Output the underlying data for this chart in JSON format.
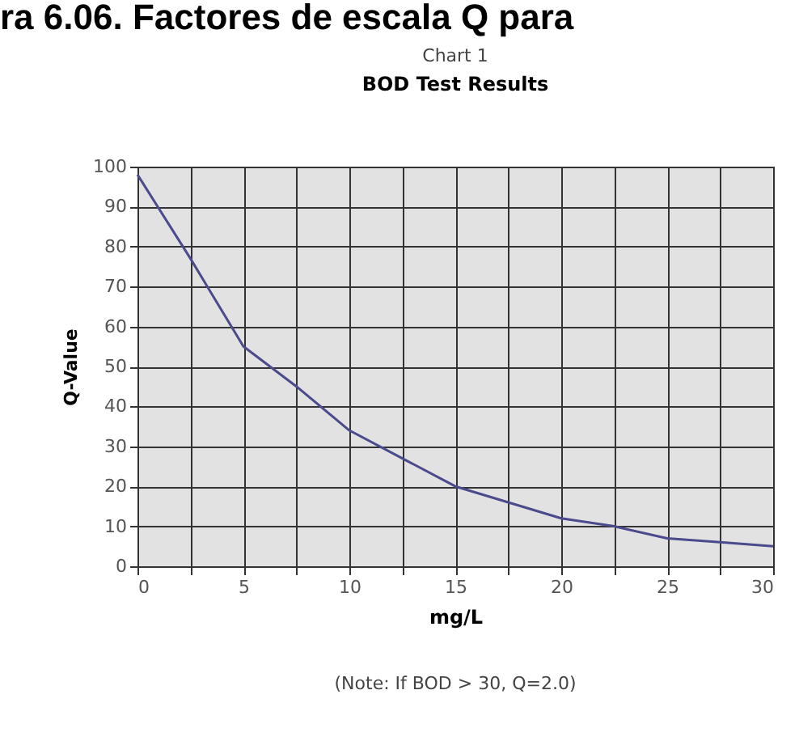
{
  "chart_data": {
    "type": "line",
    "title": "Chart 1",
    "subtitle": "BOD Test Results",
    "xlabel": "mg/L",
    "ylabel": "Q-Value",
    "annotations": [
      "ra 6.06. Factores de escala Q para",
      "(Note: If BOD > 30, Q=2.0)"
    ],
    "x": [
      0,
      2.5,
      5,
      7.5,
      10,
      12.5,
      15,
      17.5,
      20,
      22.5,
      25,
      27.5,
      30
    ],
    "series": [
      {
        "color": "#4a4a8c",
        "values": [
          98,
          77,
          55,
          45,
          34,
          27,
          20,
          16,
          12,
          10,
          7,
          6,
          5
        ]
      }
    ],
    "xlim": [
      0,
      30
    ],
    "ylim": [
      0,
      100
    ],
    "xticks": [
      0,
      {
        "value": 2.5,
        "label": null
      },
      5,
      {
        "value": 7.5,
        "label": null
      },
      10,
      {
        "value": 12.5,
        "label": null
      },
      15,
      {
        "value": 17.5,
        "label": null
      },
      20,
      {
        "value": 22.5,
        "label": null
      },
      25,
      {
        "value": 27.5,
        "label": null
      },
      30
    ],
    "yticks": [
      0,
      10,
      20,
      30,
      40,
      50,
      60,
      70,
      80,
      90,
      100
    ],
    "grid": true,
    "marker": "none",
    "line_style": "solid"
  }
}
